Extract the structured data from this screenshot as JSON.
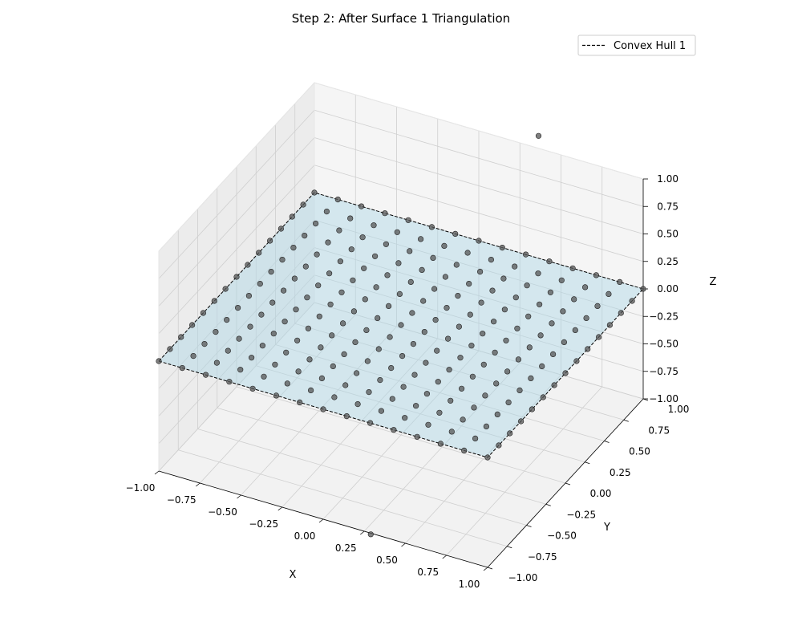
{
  "chart_data": {
    "type": "scatter",
    "projection": "3d",
    "title": "Step 2: After Surface 1 Triangulation",
    "xlabel": "X",
    "ylabel": "Y",
    "zlabel": "Z",
    "xlim": [
      -1,
      1
    ],
    "ylim": [
      -1,
      1
    ],
    "zlim": [
      -1,
      1
    ],
    "ticks": [
      -1.0,
      -0.75,
      -0.5,
      -0.25,
      0.0,
      0.25,
      0.5,
      0.75,
      1.0
    ],
    "tick_labels": [
      "−1.00",
      "−0.75",
      "−0.50",
      "−0.25",
      "0.00",
      "0.25",
      "0.50",
      "0.75",
      "1.00"
    ],
    "grid": true,
    "legend_position": "top-right",
    "legend": [
      {
        "label": "Convex Hull 1",
        "style": "dashed",
        "color": "#000000"
      }
    ],
    "surface": {
      "name": "Surface 1",
      "z": 0.0,
      "x_range": [
        -1,
        1
      ],
      "y_range": [
        -1,
        1
      ],
      "fill_color": "#add8e6"
    },
    "convex_hull": {
      "name": "Convex Hull 1",
      "z": 0.0,
      "vertices": [
        [
          -1,
          -1
        ],
        [
          1,
          -1
        ],
        [
          1,
          1
        ],
        [
          -1,
          1
        ]
      ]
    },
    "grid_points": {
      "x_start": -1,
      "x_stop": 1,
      "y_start": -1,
      "y_stop": 1,
      "count_per_axis": 15,
      "z": 0.0,
      "color": "#555555"
    },
    "outlier_points": [
      {
        "x": 0.6,
        "y": 0.5,
        "z": 1.6
      },
      {
        "x": 0.1,
        "y": -0.6,
        "z": -1.4
      }
    ]
  }
}
